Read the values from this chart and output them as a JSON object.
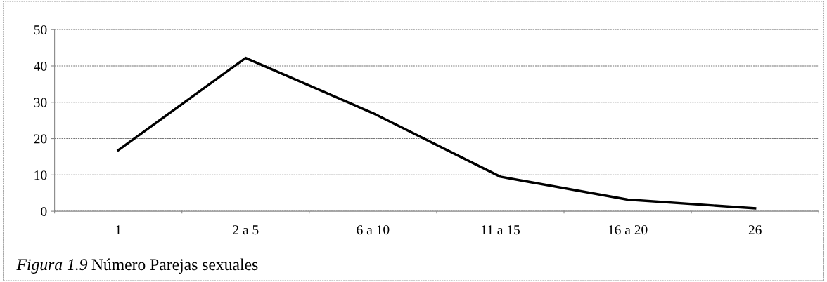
{
  "chart_data": {
    "type": "line",
    "categories": [
      "1",
      "2 a 5",
      "6 a 10",
      "11 a 15",
      "16 a 20",
      "26"
    ],
    "series": [
      {
        "color": "#000000",
        "values": [
          16.8,
          42.2,
          27.0,
          9.5,
          3.2,
          0.8
        ]
      }
    ],
    "ylim": [
      0,
      50
    ],
    "yticks": [
      0,
      10,
      20,
      30,
      40,
      50
    ],
    "grid": "y",
    "marker": "none",
    "line_style": "solid",
    "annotations": [
      "Figura 1.9",
      "Número Parejas sexuales"
    ]
  }
}
